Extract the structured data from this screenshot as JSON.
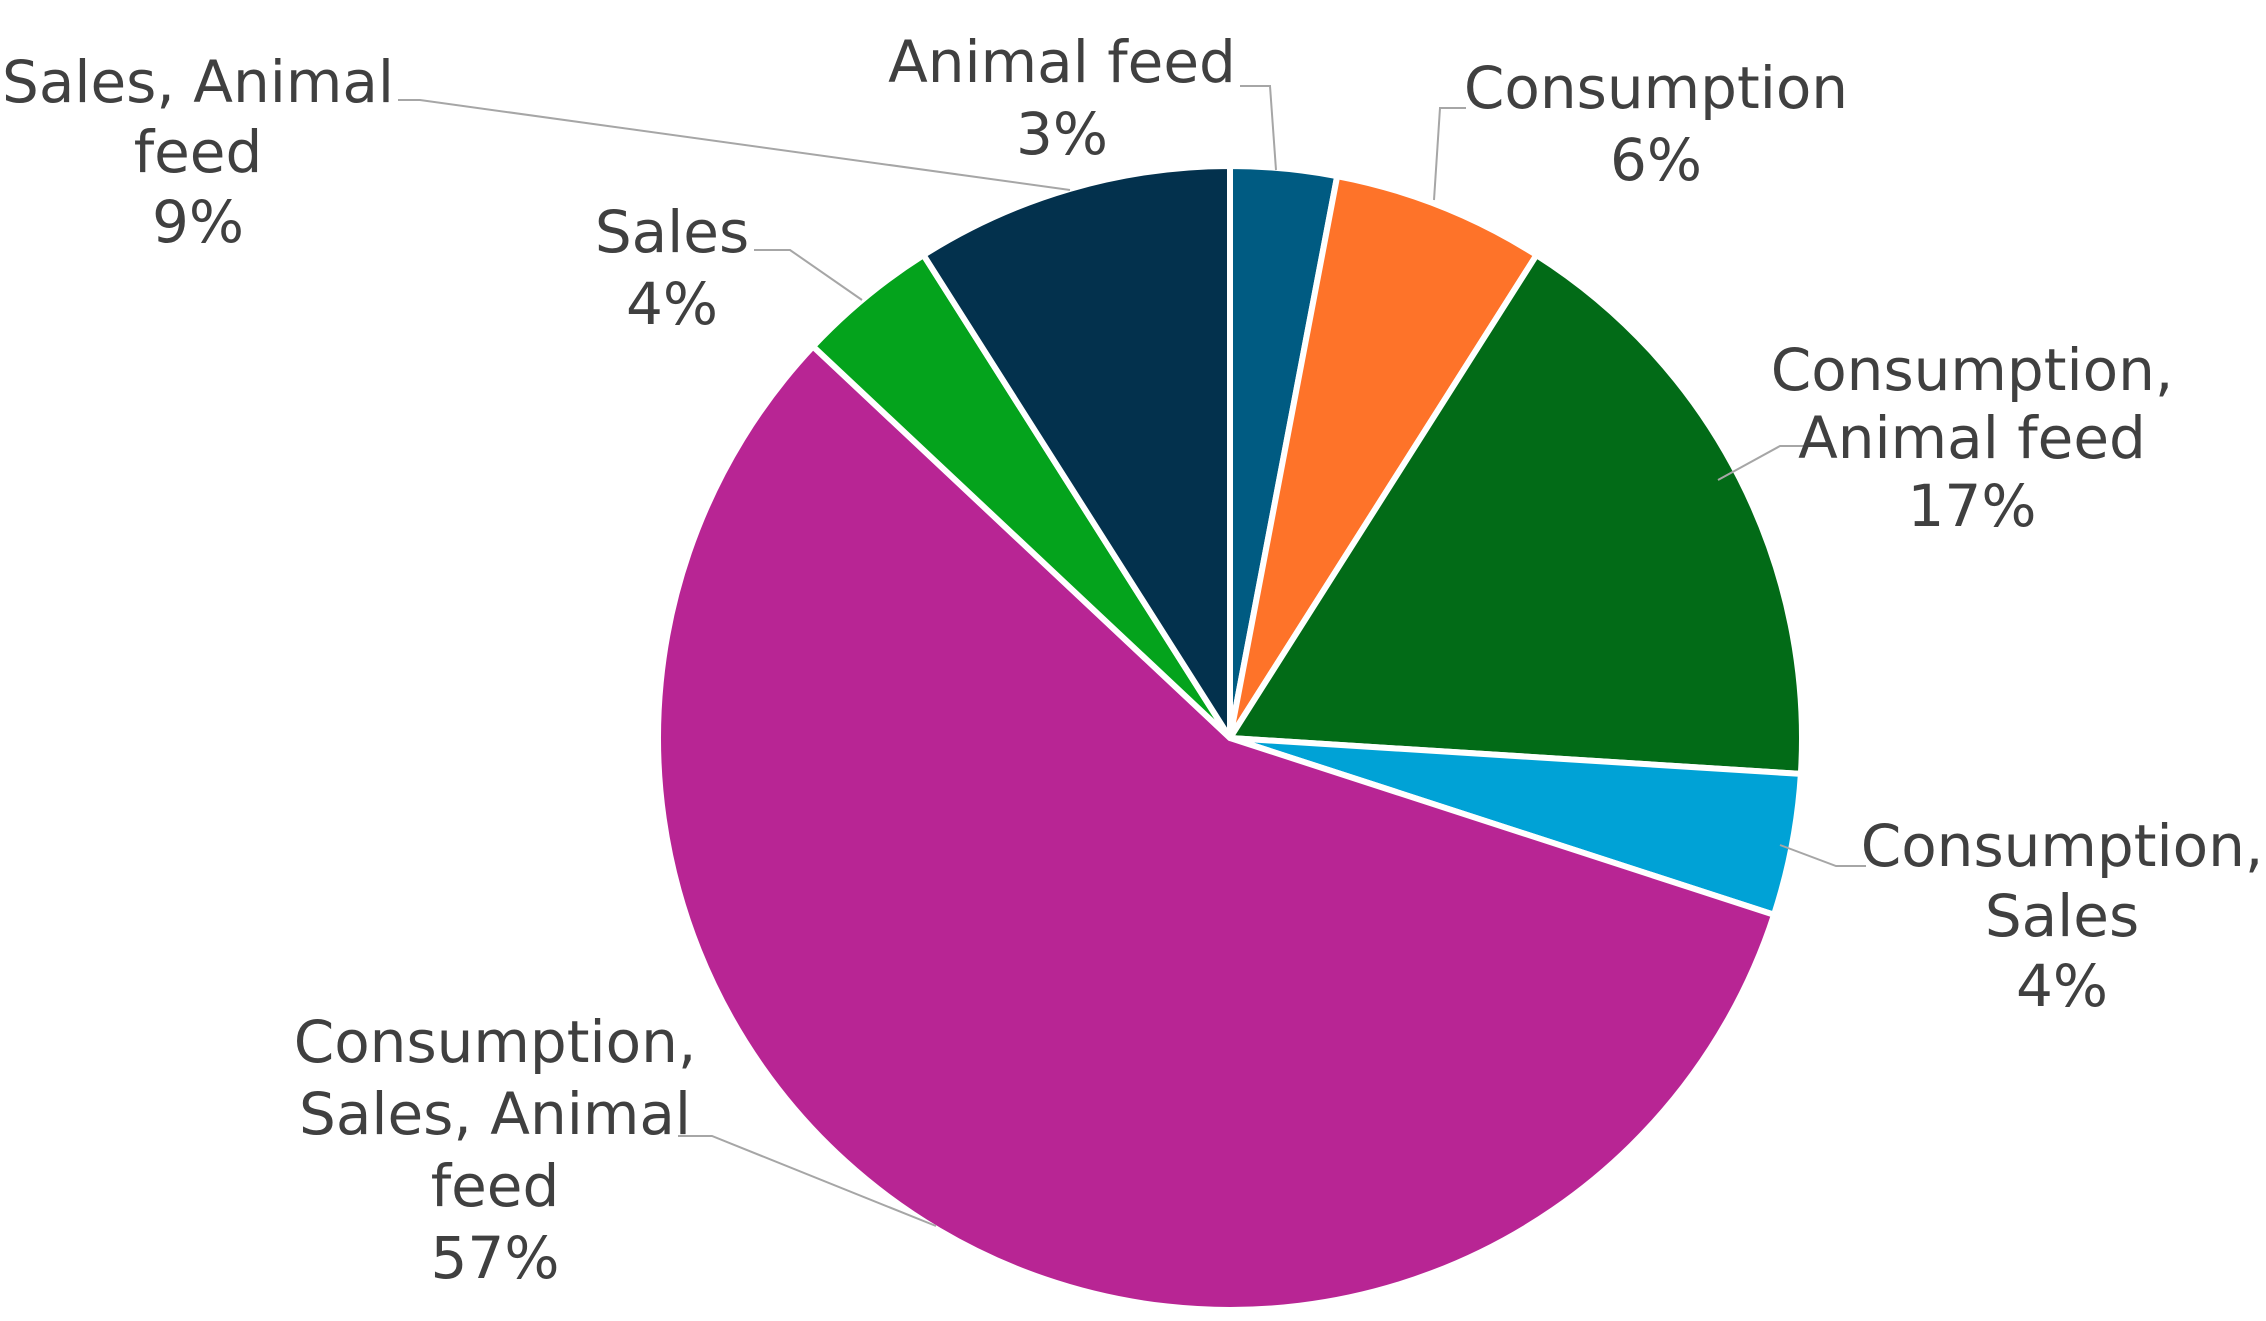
{
  "chart_data": {
    "type": "pie",
    "title": "",
    "legend": "none",
    "slices": [
      {
        "label_lines": [
          "Animal feed"
        ],
        "value": 3,
        "value_label": "3%",
        "color": "#005b82"
      },
      {
        "label_lines": [
          "Consumption"
        ],
        "value": 6,
        "value_label": "6%",
        "color": "#fe7329"
      },
      {
        "label_lines": [
          "Consumption,",
          "Animal feed"
        ],
        "value": 17,
        "value_label": "17%",
        "color": "#026b17"
      },
      {
        "label_lines": [
          "Consumption,",
          "Sales"
        ],
        "value": 4,
        "value_label": "4%",
        "color": "#00a2d6"
      },
      {
        "label_lines": [
          "Consumption,",
          "Sales, Animal",
          "feed"
        ],
        "value": 57,
        "value_label": "57%",
        "color": "#b82594"
      },
      {
        "label_lines": [
          "Sales"
        ],
        "value": 4,
        "value_label": "4%",
        "color": "#04a31c"
      },
      {
        "label_lines": [
          "Sales, Animal",
          "feed"
        ],
        "value": 9,
        "value_label": "9%",
        "color": "#03314d"
      }
    ]
  }
}
